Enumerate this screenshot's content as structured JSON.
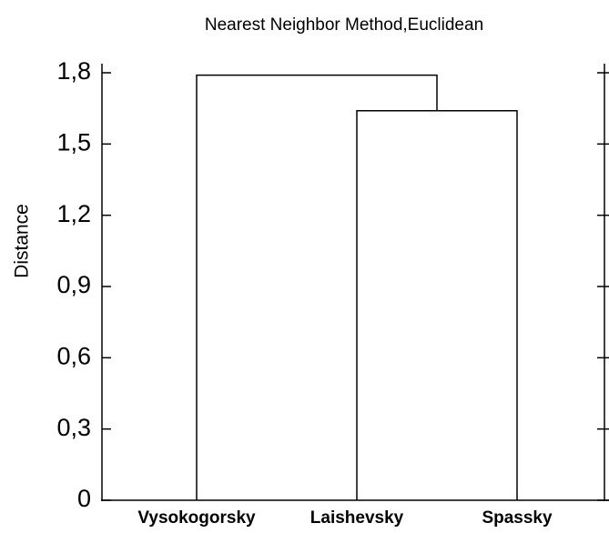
{
  "chart_data": {
    "type": "dendrogram",
    "title": "Nearest Neighbor Method,Euclidean",
    "y_label": "Distance",
    "categories": [
      "Vysokogorsky",
      "Laishevsky",
      "Spassky"
    ],
    "merges": [
      {
        "left": 1,
        "right": 2,
        "height": 1.64
      },
      {
        "left": 0,
        "right": 3,
        "height": 1.79
      }
    ],
    "ylim": [
      0,
      1.8
    ],
    "yticks": [
      0,
      {
        "value": 0.3,
        "label": "0,3"
      },
      {
        "value": 0.6,
        "label": "0,6"
      },
      {
        "value": 0.9,
        "label": "0,9"
      },
      {
        "value": 1.2,
        "label": "1,2"
      },
      {
        "value": 1.5,
        "label": "1,5"
      },
      {
        "value": 1.8,
        "label": "1,8"
      }
    ],
    "color": "#000000"
  }
}
